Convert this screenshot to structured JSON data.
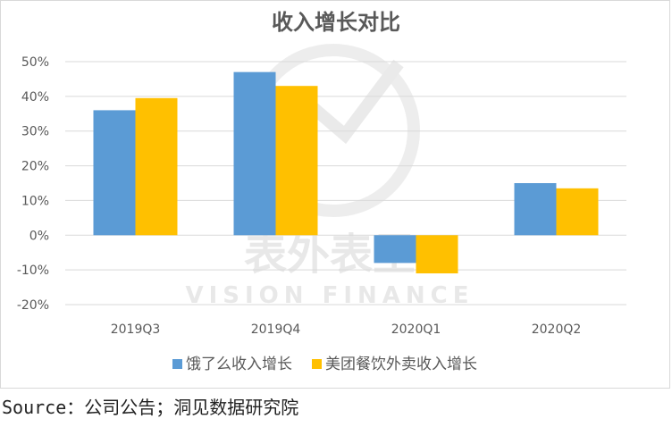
{
  "chart_data": {
    "type": "bar",
    "title": "收入增长对比",
    "categories": [
      "2019Q3",
      "2019Q4",
      "2020Q1",
      "2020Q2"
    ],
    "series": [
      {
        "name": "饿了么收入增长",
        "color": "#5b9bd5",
        "values": [
          36,
          47,
          -8,
          15
        ]
      },
      {
        "name": "美团餐饮外卖收入增长",
        "color": "#ffc000",
        "values": [
          39.5,
          43,
          -11,
          13.5
        ]
      }
    ],
    "ylim": [
      -20,
      50
    ],
    "yticks": [
      50,
      40,
      30,
      20,
      10,
      0,
      -10,
      -20
    ],
    "ytick_labels": [
      "50%",
      "40%",
      "30%",
      "20%",
      "10%",
      "0%",
      "-10%",
      "-20%"
    ],
    "xlabel": "",
    "ylabel": "",
    "grid": true,
    "legend_position": "bottom"
  },
  "watermark": {
    "cn_text": "表外表里",
    "en_text": "VISION FINANCE"
  },
  "source": "Source：公司公告；洞见数据研究院"
}
